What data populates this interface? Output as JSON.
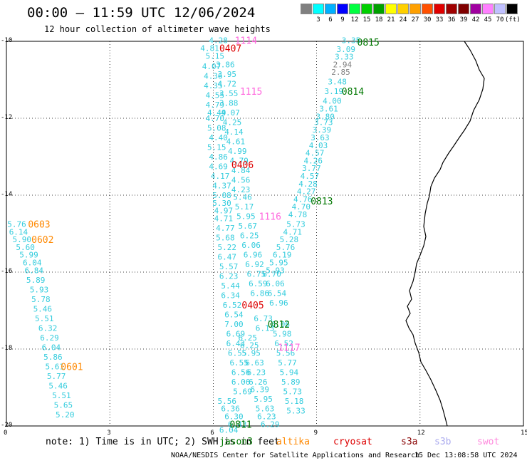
{
  "header": {
    "title": "00:00 – 11:59 UTC 12/06/2024",
    "subtitle": "12 hour collection of altimeter wave heights"
  },
  "legend": {
    "swatches": [
      {
        "color": "#808080",
        "label": ""
      },
      {
        "color": "#00ffff",
        "label": "3"
      },
      {
        "color": "#00b0ff",
        "label": "6"
      },
      {
        "color": "#0000ff",
        "label": "9"
      },
      {
        "color": "#00ff40",
        "label": "12"
      },
      {
        "color": "#00d000",
        "label": "15"
      },
      {
        "color": "#00a000",
        "label": "18"
      },
      {
        "color": "#ffff00",
        "label": "21"
      },
      {
        "color": "#ffd000",
        "label": "24"
      },
      {
        "color": "#ffa000",
        "label": "27"
      },
      {
        "color": "#ff5000",
        "label": "30"
      },
      {
        "color": "#e00000",
        "label": "33"
      },
      {
        "color": "#a00000",
        "label": "36"
      },
      {
        "color": "#800000",
        "label": "39"
      },
      {
        "color": "#a000a0",
        "label": "42"
      },
      {
        "color": "#ff80ff",
        "label": "45"
      },
      {
        "color": "#c0c0ff",
        "label": "70"
      },
      {
        "color": "#000000",
        "label": "(ft)"
      }
    ]
  },
  "axes": {
    "x_ticks": [
      "0",
      "3",
      "6",
      "9",
      "12",
      "15"
    ],
    "y_ticks": [
      "-10",
      "-12",
      "-14",
      "-16",
      "-18",
      "-20"
    ]
  },
  "tracks": [
    {
      "color": "#33ccdd",
      "points": [
        {
          "v": "5.76",
          "lon": 0.3,
          "lat": -14.75
        },
        {
          "v": "6.14",
          "lon": 0.35,
          "lat": -14.95
        },
        {
          "v": "5.90",
          "lon": 0.45,
          "lat": -15.15
        },
        {
          "v": "5.60",
          "lon": 0.55,
          "lat": -15.35
        },
        {
          "v": "5.99",
          "lon": 0.65,
          "lat": -15.55
        },
        {
          "v": "6.04",
          "lon": 0.75,
          "lat": -15.75
        },
        {
          "v": "6.84",
          "lon": 0.8,
          "lat": -15.95
        },
        {
          "v": "5.89",
          "lon": 0.85,
          "lat": -16.2
        },
        {
          "v": "5.93",
          "lon": 0.95,
          "lat": -16.45
        },
        {
          "v": "5.78",
          "lon": 1.0,
          "lat": -16.7
        },
        {
          "v": "5.46",
          "lon": 1.05,
          "lat": -16.95
        },
        {
          "v": "5.51",
          "lon": 1.1,
          "lat": -17.2
        },
        {
          "v": "6.32",
          "lon": 1.2,
          "lat": -17.45
        },
        {
          "v": "6.29",
          "lon": 1.25,
          "lat": -17.7
        },
        {
          "v": "6.04",
          "lon": 1.3,
          "lat": -17.95
        },
        {
          "v": "5.86",
          "lon": 1.35,
          "lat": -18.2
        },
        {
          "v": "5.61",
          "lon": 1.4,
          "lat": -18.45
        },
        {
          "v": "5.77",
          "lon": 1.45,
          "lat": -18.7
        },
        {
          "v": "5.46",
          "lon": 1.5,
          "lat": -18.95
        },
        {
          "v": "5.51",
          "lon": 1.6,
          "lat": -19.2
        },
        {
          "v": "5.65",
          "lon": 1.65,
          "lat": -19.45
        },
        {
          "v": "5.20",
          "lon": 1.7,
          "lat": -19.7
        }
      ]
    },
    {
      "color": "#33ccdd",
      "points": [
        {
          "v": "4.28",
          "lon": 6.15,
          "lat": -9.97
        },
        {
          "v": "4.81",
          "lon": 5.9,
          "lat": -10.18
        },
        {
          "v": "5.15",
          "lon": 6.05,
          "lat": -10.38
        },
        {
          "v": "4.07",
          "lon": 5.95,
          "lat": -10.65
        },
        {
          "v": "4.36",
          "lon": 6.0,
          "lat": -10.9
        },
        {
          "v": "4.35",
          "lon": 6.0,
          "lat": -11.15
        },
        {
          "v": "4.55",
          "lon": 6.05,
          "lat": -11.4
        },
        {
          "v": "4.79",
          "lon": 6.05,
          "lat": -11.65
        },
        {
          "v": "4.49",
          "lon": 6.1,
          "lat": -11.85
        },
        {
          "v": "4.70",
          "lon": 6.05,
          "lat": -12.0
        },
        {
          "v": "5.08",
          "lon": 6.1,
          "lat": -12.25
        },
        {
          "v": "4.40",
          "lon": 6.15,
          "lat": -12.5
        },
        {
          "v": "5.15",
          "lon": 6.1,
          "lat": -12.75
        },
        {
          "v": "4.86",
          "lon": 6.15,
          "lat": -13.0
        },
        {
          "v": "4.69",
          "lon": 6.15,
          "lat": -13.25
        },
        {
          "v": "4.17",
          "lon": 6.2,
          "lat": -13.5
        },
        {
          "v": "4.37",
          "lon": 6.25,
          "lat": -13.75
        },
        {
          "v": "5.08",
          "lon": 6.25,
          "lat": -14.0
        },
        {
          "v": "5.30",
          "lon": 6.25,
          "lat": -14.2
        },
        {
          "v": "4.97",
          "lon": 6.3,
          "lat": -14.4
        },
        {
          "v": "4.71",
          "lon": 6.3,
          "lat": -14.6
        },
        {
          "v": "4.77",
          "lon": 6.35,
          "lat": -14.85
        },
        {
          "v": "5.68",
          "lon": 6.35,
          "lat": -15.1
        },
        {
          "v": "5.22",
          "lon": 6.4,
          "lat": -15.35
        },
        {
          "v": "6.47",
          "lon": 6.4,
          "lat": -15.6
        },
        {
          "v": "5.57",
          "lon": 6.45,
          "lat": -15.85
        },
        {
          "v": "6.23",
          "lon": 6.45,
          "lat": -16.1
        },
        {
          "v": "5.44",
          "lon": 6.5,
          "lat": -16.35
        },
        {
          "v": "6.34",
          "lon": 6.5,
          "lat": -16.6
        },
        {
          "v": "6.52",
          "lon": 6.55,
          "lat": -16.85
        },
        {
          "v": "6.54",
          "lon": 6.6,
          "lat": -17.1
        },
        {
          "v": "7.00",
          "lon": 6.6,
          "lat": -17.35
        },
        {
          "v": "6.69",
          "lon": 6.65,
          "lat": -17.6
        },
        {
          "v": "6.43",
          "lon": 6.65,
          "lat": -17.85
        },
        {
          "v": "6.55",
          "lon": 6.7,
          "lat": -18.1
        },
        {
          "v": "6.55",
          "lon": 6.75,
          "lat": -18.35
        },
        {
          "v": "6.56",
          "lon": 6.8,
          "lat": -18.6
        },
        {
          "v": "6.06",
          "lon": 6.8,
          "lat": -18.85
        },
        {
          "v": "5.69",
          "lon": 6.85,
          "lat": -19.1
        },
        {
          "v": "5.56",
          "lon": 6.4,
          "lat": -19.35
        },
        {
          "v": "6.36",
          "lon": 6.5,
          "lat": -19.55
        },
        {
          "v": "6.30",
          "lon": 6.6,
          "lat": -19.75
        },
        {
          "v": "6.43",
          "lon": 6.7,
          "lat": -19.95
        },
        {
          "v": "6.04",
          "lon": 6.45,
          "lat": -20.1
        }
      ]
    },
    {
      "color": "#33ccdd",
      "points": [
        {
          "v": "3.86",
          "lon": 6.35,
          "lat": -10.6
        },
        {
          "v": "3.95",
          "lon": 6.4,
          "lat": -10.85
        },
        {
          "v": "4.72",
          "lon": 6.4,
          "lat": -11.1
        },
        {
          "v": "3.55",
          "lon": 6.45,
          "lat": -11.35
        },
        {
          "v": "3.88",
          "lon": 6.45,
          "lat": -11.6
        },
        {
          "v": "4.07",
          "lon": 6.5,
          "lat": -11.85
        },
        {
          "v": "4.25",
          "lon": 6.55,
          "lat": -12.1
        },
        {
          "v": "4.14",
          "lon": 6.6,
          "lat": -12.35
        },
        {
          "v": "4.61",
          "lon": 6.65,
          "lat": -12.6
        },
        {
          "v": "4.99",
          "lon": 6.7,
          "lat": -12.85
        },
        {
          "v": "4.79",
          "lon": 6.75,
          "lat": -13.1
        },
        {
          "v": "4.84",
          "lon": 6.8,
          "lat": -13.35
        },
        {
          "v": "4.56",
          "lon": 6.8,
          "lat": -13.6
        },
        {
          "v": "4.23",
          "lon": 6.8,
          "lat": -13.85
        },
        {
          "v": "5.46",
          "lon": 6.85,
          "lat": -14.05
        },
        {
          "v": "5.17",
          "lon": 6.9,
          "lat": -14.3
        },
        {
          "v": "5.95",
          "lon": 6.95,
          "lat": -14.55
        },
        {
          "v": "5.67",
          "lon": 7.0,
          "lat": -14.8
        },
        {
          "v": "6.25",
          "lon": 7.05,
          "lat": -15.05
        },
        {
          "v": "6.06",
          "lon": 7.1,
          "lat": -15.3
        },
        {
          "v": "6.96",
          "lon": 7.15,
          "lat": -15.55
        },
        {
          "v": "6.92",
          "lon": 7.2,
          "lat": -15.8
        },
        {
          "v": "6.75",
          "lon": 7.25,
          "lat": -16.05
        },
        {
          "v": "6.59",
          "lon": 7.3,
          "lat": -16.3
        },
        {
          "v": "6.86",
          "lon": 7.35,
          "lat": -16.55
        },
        {
          "v": "6.73",
          "lon": 7.45,
          "lat": -17.2
        },
        {
          "v": "6.13",
          "lon": 7.5,
          "lat": -17.45
        },
        {
          "v": "6.25",
          "lon": 7.0,
          "lat": -17.7
        },
        {
          "v": "6.25",
          "lon": 7.05,
          "lat": -17.9
        },
        {
          "v": "5.95",
          "lon": 7.1,
          "lat": -18.1
        },
        {
          "v": "6.63",
          "lon": 7.2,
          "lat": -18.35
        },
        {
          "v": "6.23",
          "lon": 7.25,
          "lat": -18.6
        },
        {
          "v": "6.26",
          "lon": 7.3,
          "lat": -18.85
        },
        {
          "v": "6.39",
          "lon": 7.35,
          "lat": -19.05
        },
        {
          "v": "5.95",
          "lon": 7.45,
          "lat": -19.3
        },
        {
          "v": "5.63",
          "lon": 7.5,
          "lat": -19.55
        },
        {
          "v": "6.23",
          "lon": 7.55,
          "lat": -19.75
        },
        {
          "v": "6.29",
          "lon": 7.65,
          "lat": -19.95
        }
      ]
    },
    {
      "color": "#33ccdd",
      "points": [
        {
          "v": "6.70",
          "lon": 7.7,
          "lat": -16.05
        },
        {
          "v": "6.06",
          "lon": 7.8,
          "lat": -16.3
        },
        {
          "v": "6.54",
          "lon": 7.85,
          "lat": -16.55
        },
        {
          "v": "6.96",
          "lon": 7.9,
          "lat": -16.8
        },
        {
          "v": "6.06",
          "lon": 7.95,
          "lat": -17.35
        },
        {
          "v": "5.98",
          "lon": 8.0,
          "lat": -17.6
        },
        {
          "v": "6.52",
          "lon": 8.05,
          "lat": -17.85
        },
        {
          "v": "5.56",
          "lon": 8.1,
          "lat": -18.1
        },
        {
          "v": "5.77",
          "lon": 8.15,
          "lat": -18.35
        },
        {
          "v": "5.94",
          "lon": 8.2,
          "lat": -18.6
        },
        {
          "v": "5.89",
          "lon": 8.25,
          "lat": -18.85
        },
        {
          "v": "5.73",
          "lon": 8.3,
          "lat": -19.1
        },
        {
          "v": "5.18",
          "lon": 8.35,
          "lat": -19.35
        },
        {
          "v": "5.33",
          "lon": 8.4,
          "lat": -19.6
        }
      ]
    },
    {
      "color": "#33ccdd",
      "points": [
        {
          "v": "3.35",
          "lon": 10.0,
          "lat": -9.97
        },
        {
          "v": "3.09",
          "lon": 9.85,
          "lat": -10.2
        },
        {
          "v": "3.33",
          "lon": 9.8,
          "lat": -10.4
        },
        {
          "v": "3.48",
          "lon": 9.6,
          "lat": -11.05
        },
        {
          "v": "3.19",
          "lon": 9.5,
          "lat": -11.3
        },
        {
          "v": "4.00",
          "lon": 9.45,
          "lat": -11.55
        },
        {
          "v": "3.61",
          "lon": 9.35,
          "lat": -11.75
        },
        {
          "v": "3.80",
          "lon": 9.25,
          "lat": -11.95
        },
        {
          "v": "3.73",
          "lon": 9.2,
          "lat": -12.1
        },
        {
          "v": "3.39",
          "lon": 9.15,
          "lat": -12.3
        },
        {
          "v": "3.63",
          "lon": 9.1,
          "lat": -12.5
        },
        {
          "v": "4.03",
          "lon": 9.05,
          "lat": -12.7
        },
        {
          "v": "4.57",
          "lon": 8.95,
          "lat": -12.9
        },
        {
          "v": "4.26",
          "lon": 8.9,
          "lat": -13.1
        },
        {
          "v": "3.77",
          "lon": 8.85,
          "lat": -13.3
        },
        {
          "v": "4.57",
          "lon": 8.8,
          "lat": -13.5
        },
        {
          "v": "4.28",
          "lon": 8.75,
          "lat": -13.7
        },
        {
          "v": "4.27",
          "lon": 8.7,
          "lat": -13.9
        },
        {
          "v": "4.76",
          "lon": 8.6,
          "lat": -14.1
        },
        {
          "v": "4.70",
          "lon": 8.55,
          "lat": -14.3
        },
        {
          "v": "4.78",
          "lon": 8.45,
          "lat": -14.5
        },
        {
          "v": "5.73",
          "lon": 8.4,
          "lat": -14.75
        },
        {
          "v": "4.71",
          "lon": 8.3,
          "lat": -14.95
        },
        {
          "v": "5.28",
          "lon": 8.2,
          "lat": -15.15
        },
        {
          "v": "5.76",
          "lon": 8.1,
          "lat": -15.35
        },
        {
          "v": "6.19",
          "lon": 8.0,
          "lat": -15.55
        },
        {
          "v": "5.95",
          "lon": 7.9,
          "lat": -15.75
        },
        {
          "v": "5.93",
          "lon": 7.8,
          "lat": -15.95
        }
      ]
    },
    {
      "color": "#808080",
      "points": [
        {
          "v": "2.94",
          "lon": 9.75,
          "lat": -10.6
        },
        {
          "v": "2.85",
          "lon": 9.7,
          "lat": -10.8
        }
      ]
    }
  ],
  "pass_labels": [
    {
      "text": "0815",
      "color": "#007700",
      "lon": 10.5,
      "lat": -10.02
    },
    {
      "text": "0814",
      "color": "#007700",
      "lon": 10.05,
      "lat": -11.3
    },
    {
      "text": "0813",
      "color": "#007700",
      "lon": 9.15,
      "lat": -14.15
    },
    {
      "text": "0812",
      "color": "#007700",
      "lon": 7.9,
      "lat": -17.35
    },
    {
      "text": "0811",
      "color": "#007700",
      "lon": 6.8,
      "lat": -19.95
    },
    {
      "text": "1114",
      "color": "#ff66dd",
      "lon": 6.95,
      "lat": -9.97
    },
    {
      "text": "1115",
      "color": "#ff66dd",
      "lon": 7.1,
      "lat": -11.3
    },
    {
      "text": "1116",
      "color": "#ff66dd",
      "lon": 7.65,
      "lat": -14.55
    },
    {
      "text": "1117",
      "color": "#ff66dd",
      "lon": 8.2,
      "lat": -17.95
    },
    {
      "text": "0407",
      "color": "#dd0000",
      "lon": 6.5,
      "lat": -10.18
    },
    {
      "text": "0406",
      "color": "#dd0000",
      "lon": 6.85,
      "lat": -13.2
    },
    {
      "text": "0405",
      "color": "#dd0000",
      "lon": 7.15,
      "lat": -16.85
    },
    {
      "text": "0603",
      "color": "#ff8800",
      "lon": 0.95,
      "lat": -14.75
    },
    {
      "text": "0602",
      "color": "#ff8800",
      "lon": 1.05,
      "lat": -15.15
    },
    {
      "text": "0601",
      "color": "#ff8800",
      "lon": 1.9,
      "lat": -18.45
    }
  ],
  "footer": {
    "note": "note: 1) Time is in UTC; 2) SWH is in feet",
    "satellites": [
      {
        "name": "jason3",
        "color": "#007700",
        "left": 308
      },
      {
        "name": "altika",
        "color": "#ff8800",
        "left": 388
      },
      {
        "name": "cryosat",
        "color": "#dd0000",
        "left": 468
      },
      {
        "name": "s3a",
        "color": "#880000",
        "left": 563
      },
      {
        "name": "s3b",
        "color": "#aaaaee",
        "left": 610
      },
      {
        "name": "swot",
        "color": "#ff88dd",
        "left": 670
      }
    ],
    "credit": "NOAA/NESDIS Center for Satellite Applications and Research",
    "timestamp": "15 Dec 13:08:58 UTC 2024"
  }
}
